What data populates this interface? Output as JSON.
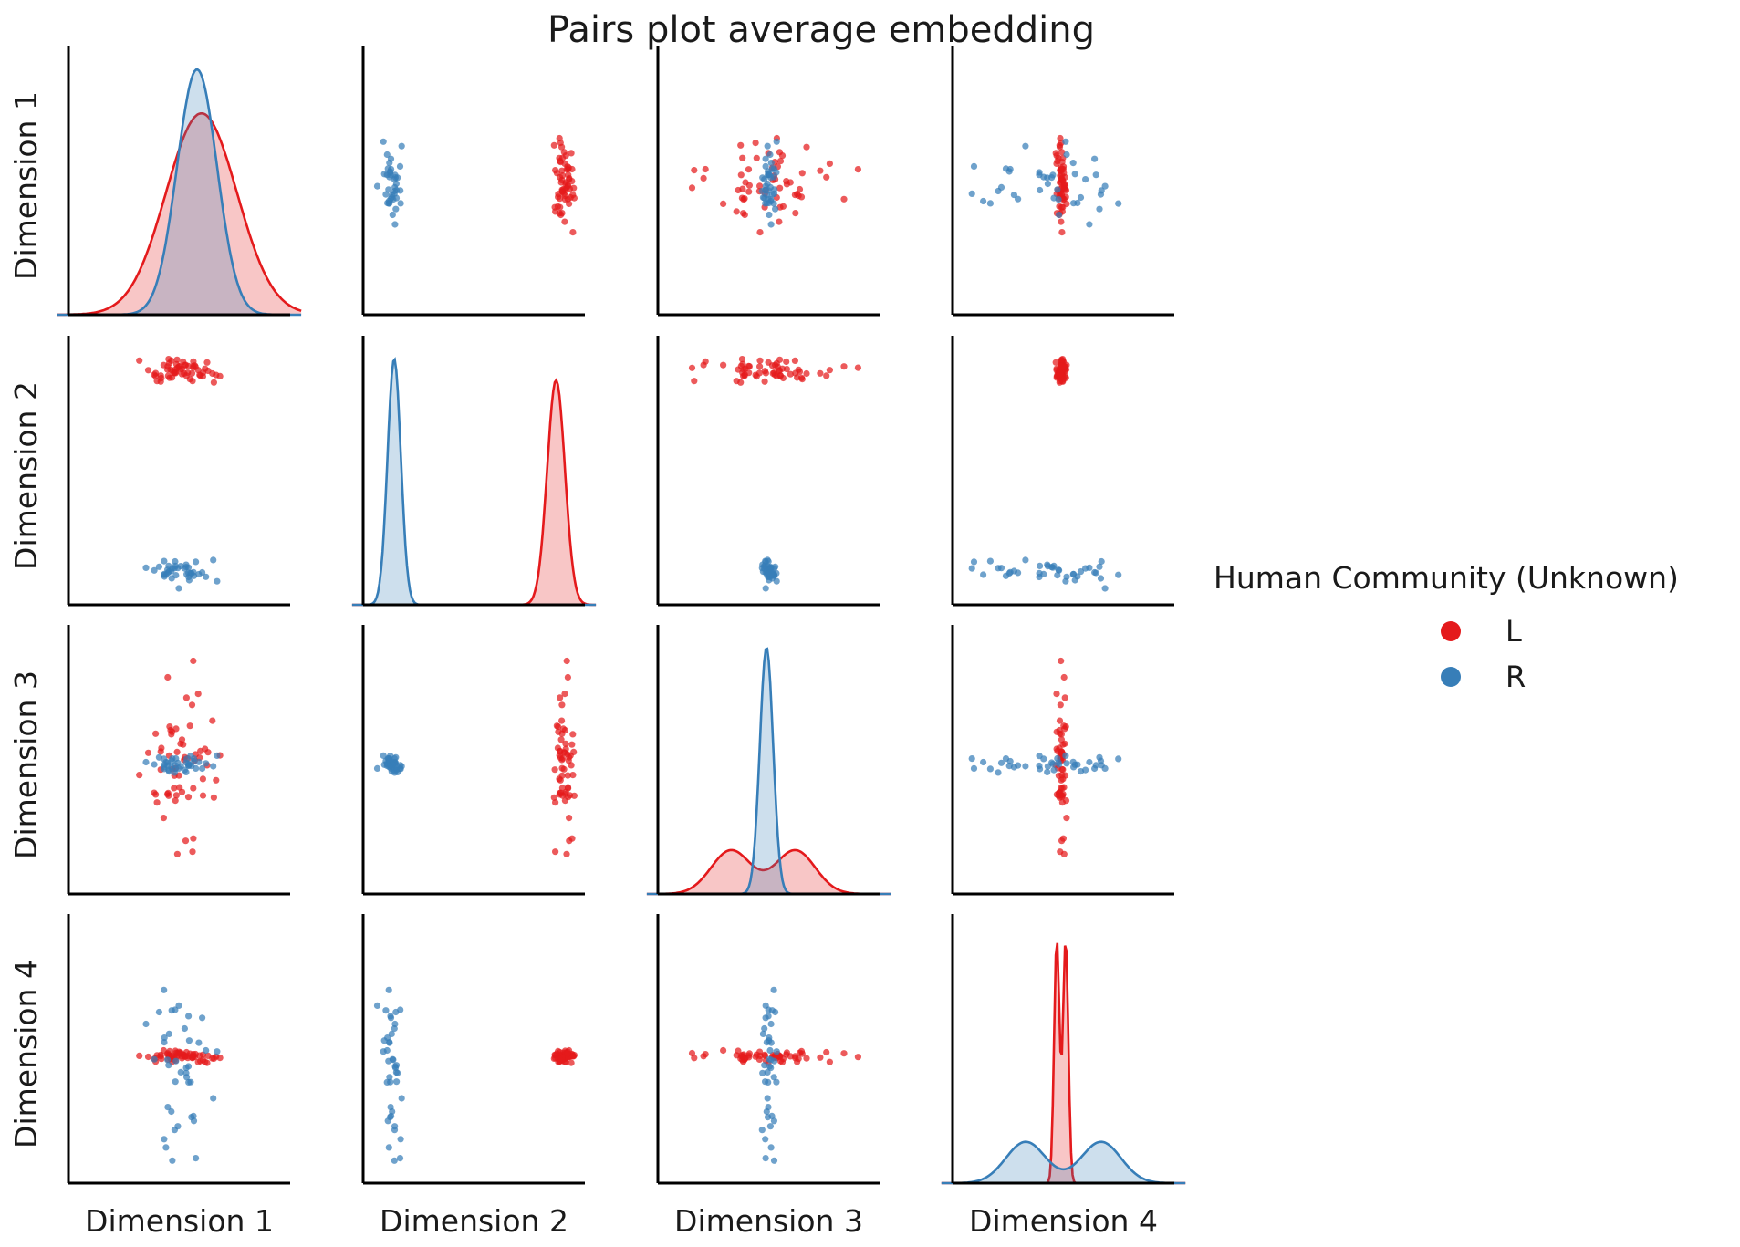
{
  "chart_data": {
    "type": "scatter",
    "subtype": "pairs-plot",
    "title": "Pairs plot average embedding",
    "variables": [
      "Dimension 1",
      "Dimension 2",
      "Dimension 3",
      "Dimension 4"
    ],
    "diagonal": "kde",
    "ticks_shown": false,
    "grid": false,
    "legend": {
      "title": "Human Community (Unknown)",
      "placement": "right",
      "entries": [
        {
          "label": "L",
          "color": "#e41a1c"
        },
        {
          "label": "R",
          "color": "#377eb8"
        }
      ]
    },
    "groups": [
      {
        "label": "L",
        "color": "#e41a1c",
        "kde": {
          "Dimension 1": {
            "center": 0.6,
            "spread": 0.16,
            "peak": 0.78
          },
          "Dimension 2": {
            "center": 0.87,
            "spread": 0.04,
            "peak": 0.87
          },
          "Dimension 3": {
            "modes": [
              0.33,
              0.62
            ],
            "spread": 0.09,
            "peak": 0.17
          },
          "Dimension 4": {
            "modes": [
              0.47,
              0.51
            ],
            "spread": 0.012,
            "peak": 0.93
          }
        }
      },
      {
        "label": "R",
        "color": "#377eb8",
        "kde": {
          "Dimension 1": {
            "center": 0.58,
            "spread": 0.09,
            "peak": 0.95
          },
          "Dimension 2": {
            "center": 0.14,
            "spread": 0.03,
            "peak": 0.95
          },
          "Dimension 3": {
            "center": 0.49,
            "spread": 0.03,
            "peak": 0.95
          },
          "Dimension 4": {
            "modes": [
              0.33,
              0.67
            ],
            "spread": 0.09,
            "peak": 0.16
          }
        }
      }
    ],
    "point_clusters": [
      {
        "group": "L",
        "n": 60,
        "Dimension 1": [
          0.22,
          0.78
        ],
        "Dimension 2": [
          0.84,
          0.97
        ],
        "Dimension 3": [
          0.05,
          0.95
        ],
        "Dimension 4": [
          0.46,
          0.52
        ]
      },
      {
        "group": "R",
        "n": 40,
        "Dimension 1": [
          0.3,
          0.72
        ],
        "Dimension 2": [
          0.06,
          0.2
        ],
        "Dimension 3": [
          0.45,
          0.55
        ],
        "Dimension 4": [
          0.02,
          0.98
        ]
      }
    ]
  }
}
